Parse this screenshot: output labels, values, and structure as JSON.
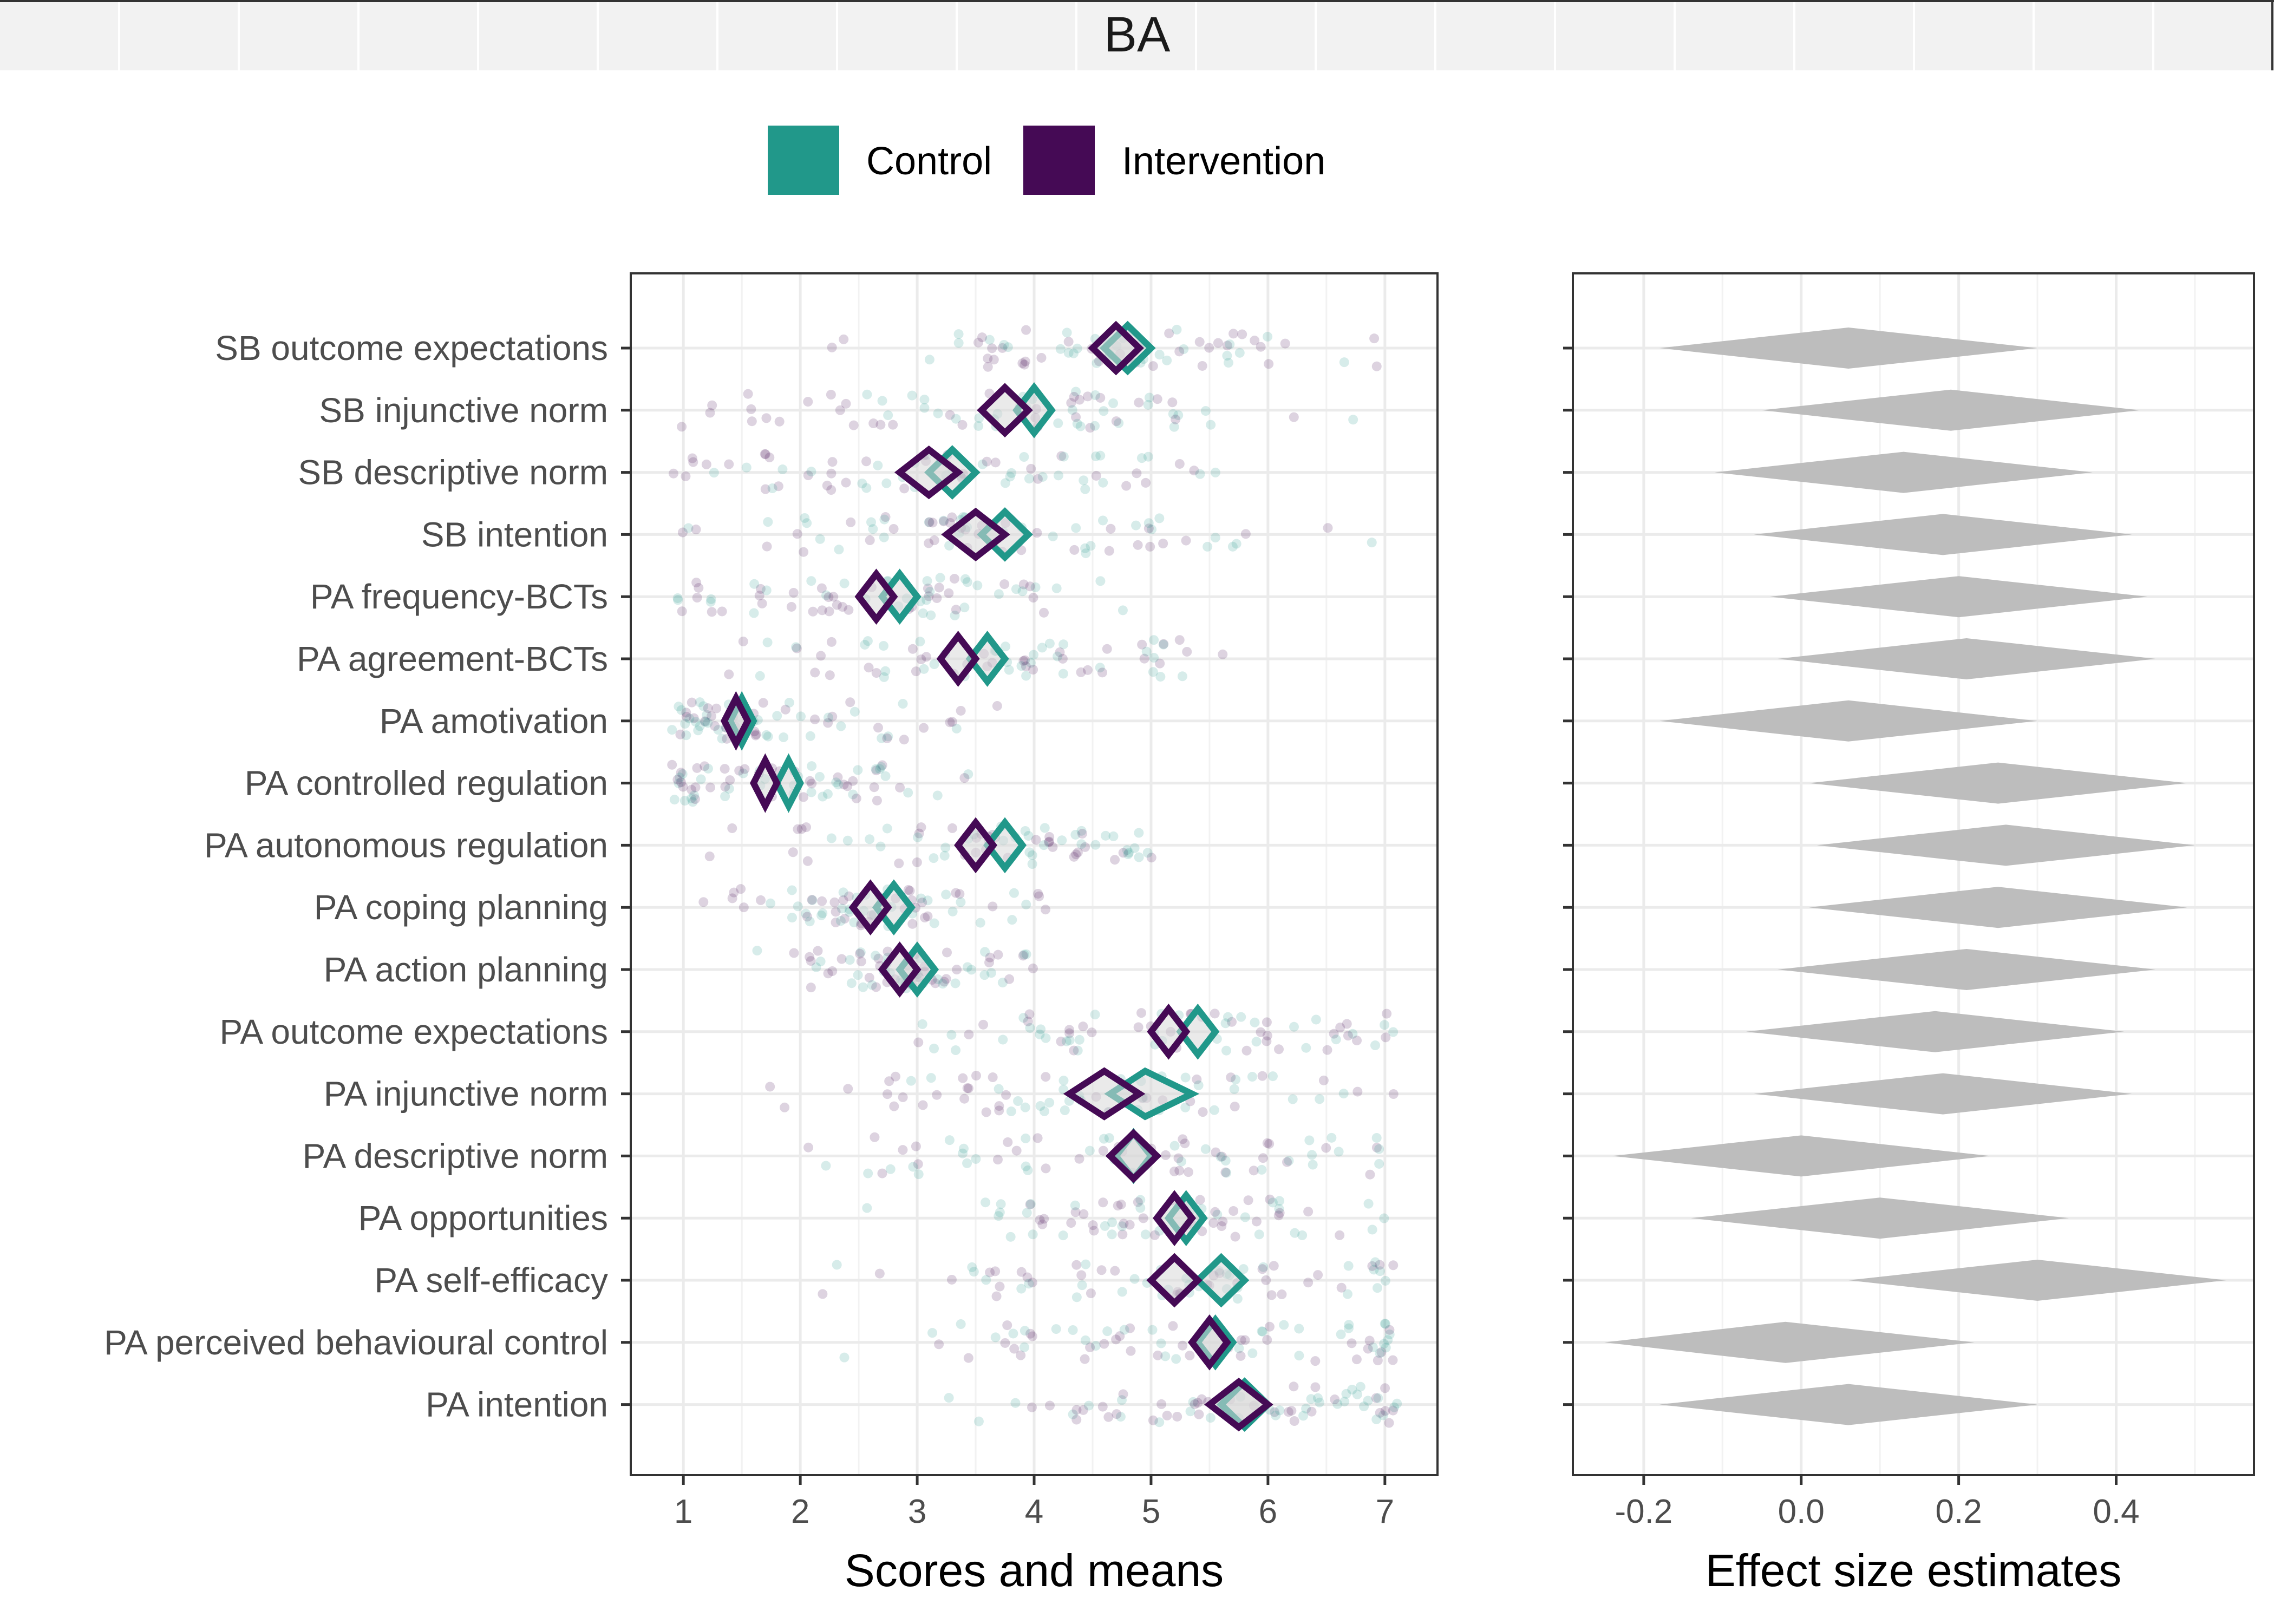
{
  "strip_label": "BA",
  "legend": [
    {
      "label": "Control",
      "color": "#21988a"
    },
    {
      "label": "Intervention",
      "color": "#450a55"
    }
  ],
  "effect_color": "#bdbdbd",
  "chart_data": [
    {
      "type": "scatter",
      "xlabel": "Scores and means",
      "xlim": [
        0.55,
        7.45
      ],
      "xticks": [
        1,
        2,
        3,
        4,
        5,
        6,
        7
      ],
      "grid": true,
      "categories": [
        "SB outcome expectations",
        "SB injunctive norm",
        "SB descriptive norm",
        "SB intention",
        "PA frequency-BCTs",
        "PA agreement-BCTs",
        "PA amotivation",
        "PA controlled regulation",
        "PA autonomous regulation",
        "PA coping planning",
        "PA action planning",
        "PA outcome expectations",
        "PA injunctive norm",
        "PA descriptive norm",
        "PA opportunities",
        "PA self-efficacy",
        "PA perceived behavioural control",
        "PA intention"
      ],
      "series": [
        {
          "name": "Control",
          "mean": [
            4.8,
            4.0,
            3.3,
            3.75,
            2.85,
            3.6,
            1.5,
            1.9,
            3.75,
            2.8,
            3.0,
            5.4,
            4.95,
            4.85,
            5.3,
            5.6,
            5.55,
            5.8
          ],
          "ci_low": [
            4.6,
            3.85,
            3.1,
            3.55,
            2.7,
            3.45,
            1.4,
            1.8,
            3.6,
            2.65,
            2.85,
            5.25,
            4.65,
            4.7,
            5.15,
            5.4,
            5.4,
            5.6
          ],
          "ci_high": [
            5.0,
            4.15,
            3.5,
            3.95,
            3.0,
            3.75,
            1.6,
            2.0,
            3.9,
            2.95,
            3.15,
            5.55,
            5.35,
            5.0,
            5.45,
            5.8,
            5.7,
            6.0
          ]
        },
        {
          "name": "Intervention",
          "mean": [
            4.7,
            3.75,
            3.1,
            3.5,
            2.65,
            3.35,
            1.45,
            1.7,
            3.5,
            2.6,
            2.85,
            5.15,
            4.6,
            4.85,
            5.2,
            5.2,
            5.5,
            5.75
          ],
          "ci_low": [
            4.5,
            3.55,
            2.85,
            3.25,
            2.5,
            3.2,
            1.35,
            1.6,
            3.35,
            2.45,
            2.7,
            5.0,
            4.3,
            4.65,
            5.05,
            5.0,
            5.35,
            5.5
          ],
          "ci_high": [
            4.9,
            3.95,
            3.35,
            3.75,
            2.8,
            3.5,
            1.55,
            1.8,
            3.65,
            2.75,
            3.0,
            5.3,
            4.9,
            5.05,
            5.35,
            5.4,
            5.65,
            6.0
          ]
        }
      ],
      "raw_ranges": [
        [
          1,
          7
        ],
        [
          1,
          7
        ],
        [
          1,
          7
        ],
        [
          1,
          7
        ],
        [
          1,
          6
        ],
        [
          1,
          6
        ],
        [
          1,
          5
        ],
        [
          1,
          5
        ],
        [
          1,
          5
        ],
        [
          1,
          4
        ],
        [
          1,
          4
        ],
        [
          1,
          7
        ],
        [
          1,
          7
        ],
        [
          1,
          7
        ],
        [
          1,
          7
        ],
        [
          1,
          7
        ],
        [
          1,
          7
        ],
        [
          1,
          7
        ]
      ]
    },
    {
      "type": "interval",
      "xlabel": "Effect size estimates",
      "xlim": [
        -0.29,
        0.575
      ],
      "xticks": [
        -0.2,
        0.0,
        0.2,
        0.4
      ],
      "xtick_labels": [
        "-0.2",
        "0.0",
        "0.2",
        "0.4"
      ],
      "grid": true,
      "estimate": [
        0.06,
        0.19,
        0.13,
        0.18,
        0.2,
        0.21,
        0.06,
        0.25,
        0.26,
        0.25,
        0.21,
        0.17,
        0.18,
        0.0,
        0.1,
        0.3,
        -0.02,
        0.06
      ],
      "ci_low": [
        -0.18,
        -0.05,
        -0.11,
        -0.06,
        -0.04,
        -0.03,
        -0.18,
        0.01,
        0.02,
        0.01,
        -0.03,
        -0.07,
        -0.06,
        -0.24,
        -0.14,
        0.06,
        -0.25,
        -0.18
      ],
      "ci_high": [
        0.3,
        0.43,
        0.37,
        0.42,
        0.44,
        0.45,
        0.3,
        0.49,
        0.5,
        0.49,
        0.45,
        0.41,
        0.42,
        0.24,
        0.34,
        0.54,
        0.22,
        0.3
      ]
    }
  ]
}
